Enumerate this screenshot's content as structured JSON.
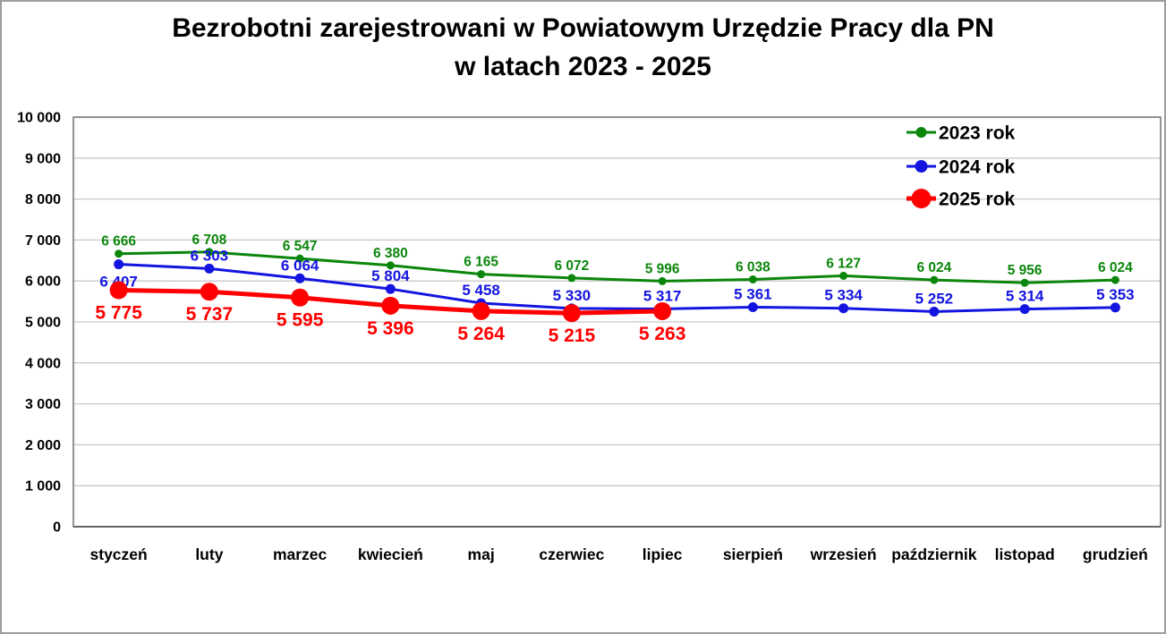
{
  "page": {
    "background": "#ffffff",
    "frame_border_color": "#9e9e9e"
  },
  "chart_data": {
    "type": "line",
    "title": "Bezrobotni zarejestrowani w Powiatowym Urzędzie Pracy dla PN w latach 2023 - 2025",
    "title_lines": [
      "Bezrobotni zarejestrowani w Powiatowym Urzędzie Pracy dla PN",
      "w latach 2023 - 2025"
    ],
    "categories": [
      "styczeń",
      "luty",
      "marzec",
      "kwiecień",
      "maj",
      "czerwiec",
      "lipiec",
      "sierpień",
      "wrzesień",
      "październik",
      "listopad",
      "grudzień"
    ],
    "series": [
      {
        "name": "2023 rok",
        "color": "#0b860b",
        "marker": "small-circle",
        "values": [
          6666,
          6708,
          6547,
          6380,
          6165,
          6072,
          5996,
          6038,
          6127,
          6024,
          5956,
          6024
        ],
        "labels": [
          "6 666",
          "6 708",
          "6 547",
          "6 380",
          "6 165",
          "6 072",
          "5 996",
          "6 038",
          "6 127",
          "6 024",
          "5 956",
          "6 024"
        ]
      },
      {
        "name": "2024 rok",
        "color": "#1414e0",
        "marker": "small-circle",
        "values": [
          6407,
          6303,
          6064,
          5804,
          5458,
          5330,
          5317,
          5361,
          5334,
          5252,
          5314,
          5353
        ],
        "labels": [
          "6 407",
          "6 303",
          "6 064",
          "5 804",
          "5 458",
          "5 330",
          "5 317",
          "5 361",
          "5 334",
          "5 252",
          "5 314",
          "5 353"
        ]
      },
      {
        "name": "2025 rok",
        "color": "#ff0000",
        "marker": "large-circle",
        "values": [
          5775,
          5737,
          5595,
          5396,
          5264,
          5215,
          5263
        ],
        "labels": [
          "5 775",
          "5 737",
          "5 595",
          "5 396",
          "5 264",
          "5 215",
          "5 263"
        ]
      }
    ],
    "xlabel": "",
    "ylabel": "",
    "ylim": [
      0,
      10000
    ],
    "ytick_step": 1000,
    "ytick_labels": [
      "0",
      "1 000",
      "2 000",
      "3 000",
      "4 000",
      "5 000",
      "6 000",
      "7 000",
      "8 000",
      "9 000",
      "10 000"
    ],
    "grid": true,
    "gridline_color": "#c8c8c8",
    "plot_border_color": "#7a7a7a",
    "axis_text_color": "#000000",
    "legend_position": "top-right",
    "legend_entries": [
      "2023 rok",
      "2024 rok",
      "2025 rok"
    ]
  }
}
